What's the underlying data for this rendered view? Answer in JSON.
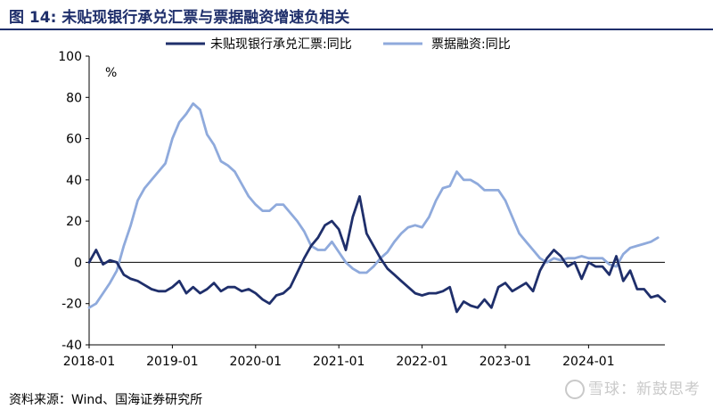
{
  "header": {
    "title": "图 14:  未贴现银行承兑汇票与票据融资增速负相关"
  },
  "footer": {
    "source": "资料来源：Wind、国海证券研究所",
    "watermark": "雪球：新鼓思考"
  },
  "chart_data": {
    "type": "line",
    "title": "",
    "xlabel": "",
    "ylabel": "%",
    "ylim": [
      -40,
      100
    ],
    "yticks": [
      -40,
      -20,
      0,
      20,
      40,
      60,
      80,
      100
    ],
    "xlim": [
      "2018-01",
      "2024-12"
    ],
    "xticks": [
      "2018-01",
      "2019-01",
      "2020-01",
      "2021-01",
      "2022-01",
      "2023-01",
      "2024-01"
    ],
    "grid": false,
    "legend": "top-center",
    "zero_line": true,
    "series": [
      {
        "name": "未贴现银行承兑汇票:同比",
        "color": "#1f2f6b",
        "points": [
          [
            "2018-01",
            0
          ],
          [
            "2018-02",
            6
          ],
          [
            "2018-03",
            -1
          ],
          [
            "2018-04",
            1
          ],
          [
            "2018-05",
            0
          ],
          [
            "2018-06",
            -6
          ],
          [
            "2018-07",
            -8
          ],
          [
            "2018-08",
            -9
          ],
          [
            "2018-09",
            -11
          ],
          [
            "2018-10",
            -13
          ],
          [
            "2018-11",
            -14
          ],
          [
            "2018-12",
            -14
          ],
          [
            "2019-01",
            -12
          ],
          [
            "2019-02",
            -9
          ],
          [
            "2019-03",
            -15
          ],
          [
            "2019-04",
            -12
          ],
          [
            "2019-05",
            -15
          ],
          [
            "2019-06",
            -13
          ],
          [
            "2019-07",
            -10
          ],
          [
            "2019-08",
            -14
          ],
          [
            "2019-09",
            -12
          ],
          [
            "2019-10",
            -12
          ],
          [
            "2019-11",
            -14
          ],
          [
            "2019-12",
            -13
          ],
          [
            "2020-01",
            -15
          ],
          [
            "2020-02",
            -18
          ],
          [
            "2020-03",
            -20
          ],
          [
            "2020-04",
            -16
          ],
          [
            "2020-05",
            -15
          ],
          [
            "2020-06",
            -12
          ],
          [
            "2020-07",
            -5
          ],
          [
            "2020-08",
            2
          ],
          [
            "2020-09",
            8
          ],
          [
            "2020-10",
            12
          ],
          [
            "2020-11",
            18
          ],
          [
            "2020-12",
            20
          ],
          [
            "2021-01",
            16
          ],
          [
            "2021-02",
            6
          ],
          [
            "2021-03",
            22
          ],
          [
            "2021-04",
            32
          ],
          [
            "2021-05",
            14
          ],
          [
            "2021-06",
            8
          ],
          [
            "2021-07",
            2
          ],
          [
            "2021-08",
            -3
          ],
          [
            "2021-09",
            -6
          ],
          [
            "2021-10",
            -9
          ],
          [
            "2021-11",
            -12
          ],
          [
            "2021-12",
            -15
          ],
          [
            "2022-01",
            -16
          ],
          [
            "2022-02",
            -15
          ],
          [
            "2022-03",
            -15
          ],
          [
            "2022-04",
            -14
          ],
          [
            "2022-05",
            -12
          ],
          [
            "2022-06",
            -24
          ],
          [
            "2022-07",
            -19
          ],
          [
            "2022-08",
            -21
          ],
          [
            "2022-09",
            -22
          ],
          [
            "2022-10",
            -18
          ],
          [
            "2022-11",
            -22
          ],
          [
            "2022-12",
            -12
          ],
          [
            "2023-01",
            -10
          ],
          [
            "2023-02",
            -14
          ],
          [
            "2023-03",
            -12
          ],
          [
            "2023-04",
            -10
          ],
          [
            "2023-05",
            -14
          ],
          [
            "2023-06",
            -4
          ],
          [
            "2023-07",
            2
          ],
          [
            "2023-08",
            6
          ],
          [
            "2023-09",
            3
          ],
          [
            "2023-10",
            -2
          ],
          [
            "2023-11",
            0
          ],
          [
            "2023-12",
            -8
          ],
          [
            "2024-01",
            0
          ],
          [
            "2024-02",
            -2
          ],
          [
            "2024-03",
            -2
          ],
          [
            "2024-04",
            -6
          ],
          [
            "2024-05",
            3
          ],
          [
            "2024-06",
            -9
          ],
          [
            "2024-07",
            -4
          ],
          [
            "2024-08",
            -13
          ],
          [
            "2024-09",
            -13
          ],
          [
            "2024-10",
            -17
          ],
          [
            "2024-11",
            -16
          ],
          [
            "2024-12",
            -19
          ]
        ]
      },
      {
        "name": "票据融资:同比",
        "color": "#8faadc",
        "points": [
          [
            "2018-01",
            -22
          ],
          [
            "2018-02",
            -20
          ],
          [
            "2018-03",
            -15
          ],
          [
            "2018-04",
            -10
          ],
          [
            "2018-05",
            -4
          ],
          [
            "2018-06",
            8
          ],
          [
            "2018-07",
            18
          ],
          [
            "2018-08",
            30
          ],
          [
            "2018-09",
            36
          ],
          [
            "2018-10",
            40
          ],
          [
            "2018-11",
            44
          ],
          [
            "2018-12",
            48
          ],
          [
            "2019-01",
            60
          ],
          [
            "2019-02",
            68
          ],
          [
            "2019-03",
            72
          ],
          [
            "2019-04",
            77
          ],
          [
            "2019-05",
            74
          ],
          [
            "2019-06",
            62
          ],
          [
            "2019-07",
            57
          ],
          [
            "2019-08",
            49
          ],
          [
            "2019-09",
            47
          ],
          [
            "2019-10",
            44
          ],
          [
            "2019-11",
            38
          ],
          [
            "2019-12",
            32
          ],
          [
            "2020-01",
            28
          ],
          [
            "2020-02",
            25
          ],
          [
            "2020-03",
            25
          ],
          [
            "2020-04",
            28
          ],
          [
            "2020-05",
            28
          ],
          [
            "2020-06",
            24
          ],
          [
            "2020-07",
            20
          ],
          [
            "2020-08",
            15
          ],
          [
            "2020-09",
            8
          ],
          [
            "2020-10",
            6
          ],
          [
            "2020-11",
            6
          ],
          [
            "2020-12",
            10
          ],
          [
            "2021-01",
            5
          ],
          [
            "2021-02",
            0
          ],
          [
            "2021-03",
            -3
          ],
          [
            "2021-04",
            -5
          ],
          [
            "2021-05",
            -5
          ],
          [
            "2021-06",
            -2
          ],
          [
            "2021-07",
            2
          ],
          [
            "2021-08",
            5
          ],
          [
            "2021-09",
            10
          ],
          [
            "2021-10",
            14
          ],
          [
            "2021-11",
            17
          ],
          [
            "2021-12",
            18
          ],
          [
            "2022-01",
            17
          ],
          [
            "2022-02",
            22
          ],
          [
            "2022-03",
            30
          ],
          [
            "2022-04",
            36
          ],
          [
            "2022-05",
            37
          ],
          [
            "2022-06",
            44
          ],
          [
            "2022-07",
            40
          ],
          [
            "2022-08",
            40
          ],
          [
            "2022-09",
            38
          ],
          [
            "2022-10",
            35
          ],
          [
            "2022-11",
            35
          ],
          [
            "2022-12",
            35
          ],
          [
            "2023-01",
            30
          ],
          [
            "2023-02",
            22
          ],
          [
            "2023-03",
            14
          ],
          [
            "2023-04",
            10
          ],
          [
            "2023-05",
            6
          ],
          [
            "2023-06",
            2
          ],
          [
            "2023-07",
            0
          ],
          [
            "2023-08",
            2
          ],
          [
            "2023-09",
            1
          ],
          [
            "2023-10",
            2
          ],
          [
            "2023-11",
            2
          ],
          [
            "2023-12",
            3
          ],
          [
            "2024-01",
            2
          ],
          [
            "2024-02",
            2
          ],
          [
            "2024-03",
            2
          ],
          [
            "2024-04",
            -1
          ],
          [
            "2024-05",
            -2
          ],
          [
            "2024-06",
            4
          ],
          [
            "2024-07",
            7
          ],
          [
            "2024-08",
            8
          ],
          [
            "2024-09",
            9
          ],
          [
            "2024-10",
            10
          ],
          [
            "2024-11",
            12
          ]
        ]
      }
    ]
  }
}
